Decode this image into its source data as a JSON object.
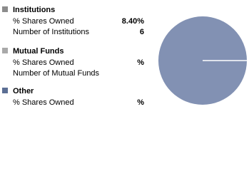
{
  "sections": [
    {
      "title": "Institutions",
      "color": "#8c8c8c",
      "rows": [
        {
          "label": "% Shares Owned",
          "value": "8.40%"
        },
        {
          "label": "Number of Institutions",
          "value": "6"
        }
      ]
    },
    {
      "title": "Mutual Funds",
      "color": "#a9a9a9",
      "rows": [
        {
          "label": "% Shares Owned",
          "value": "%"
        },
        {
          "label": "Number of Mutual Funds"
        }
      ]
    },
    {
      "title": "Other",
      "color": "#5c6f94",
      "rows": [
        {
          "label": "% Shares Owned",
          "value": "%"
        }
      ]
    }
  ]
}
